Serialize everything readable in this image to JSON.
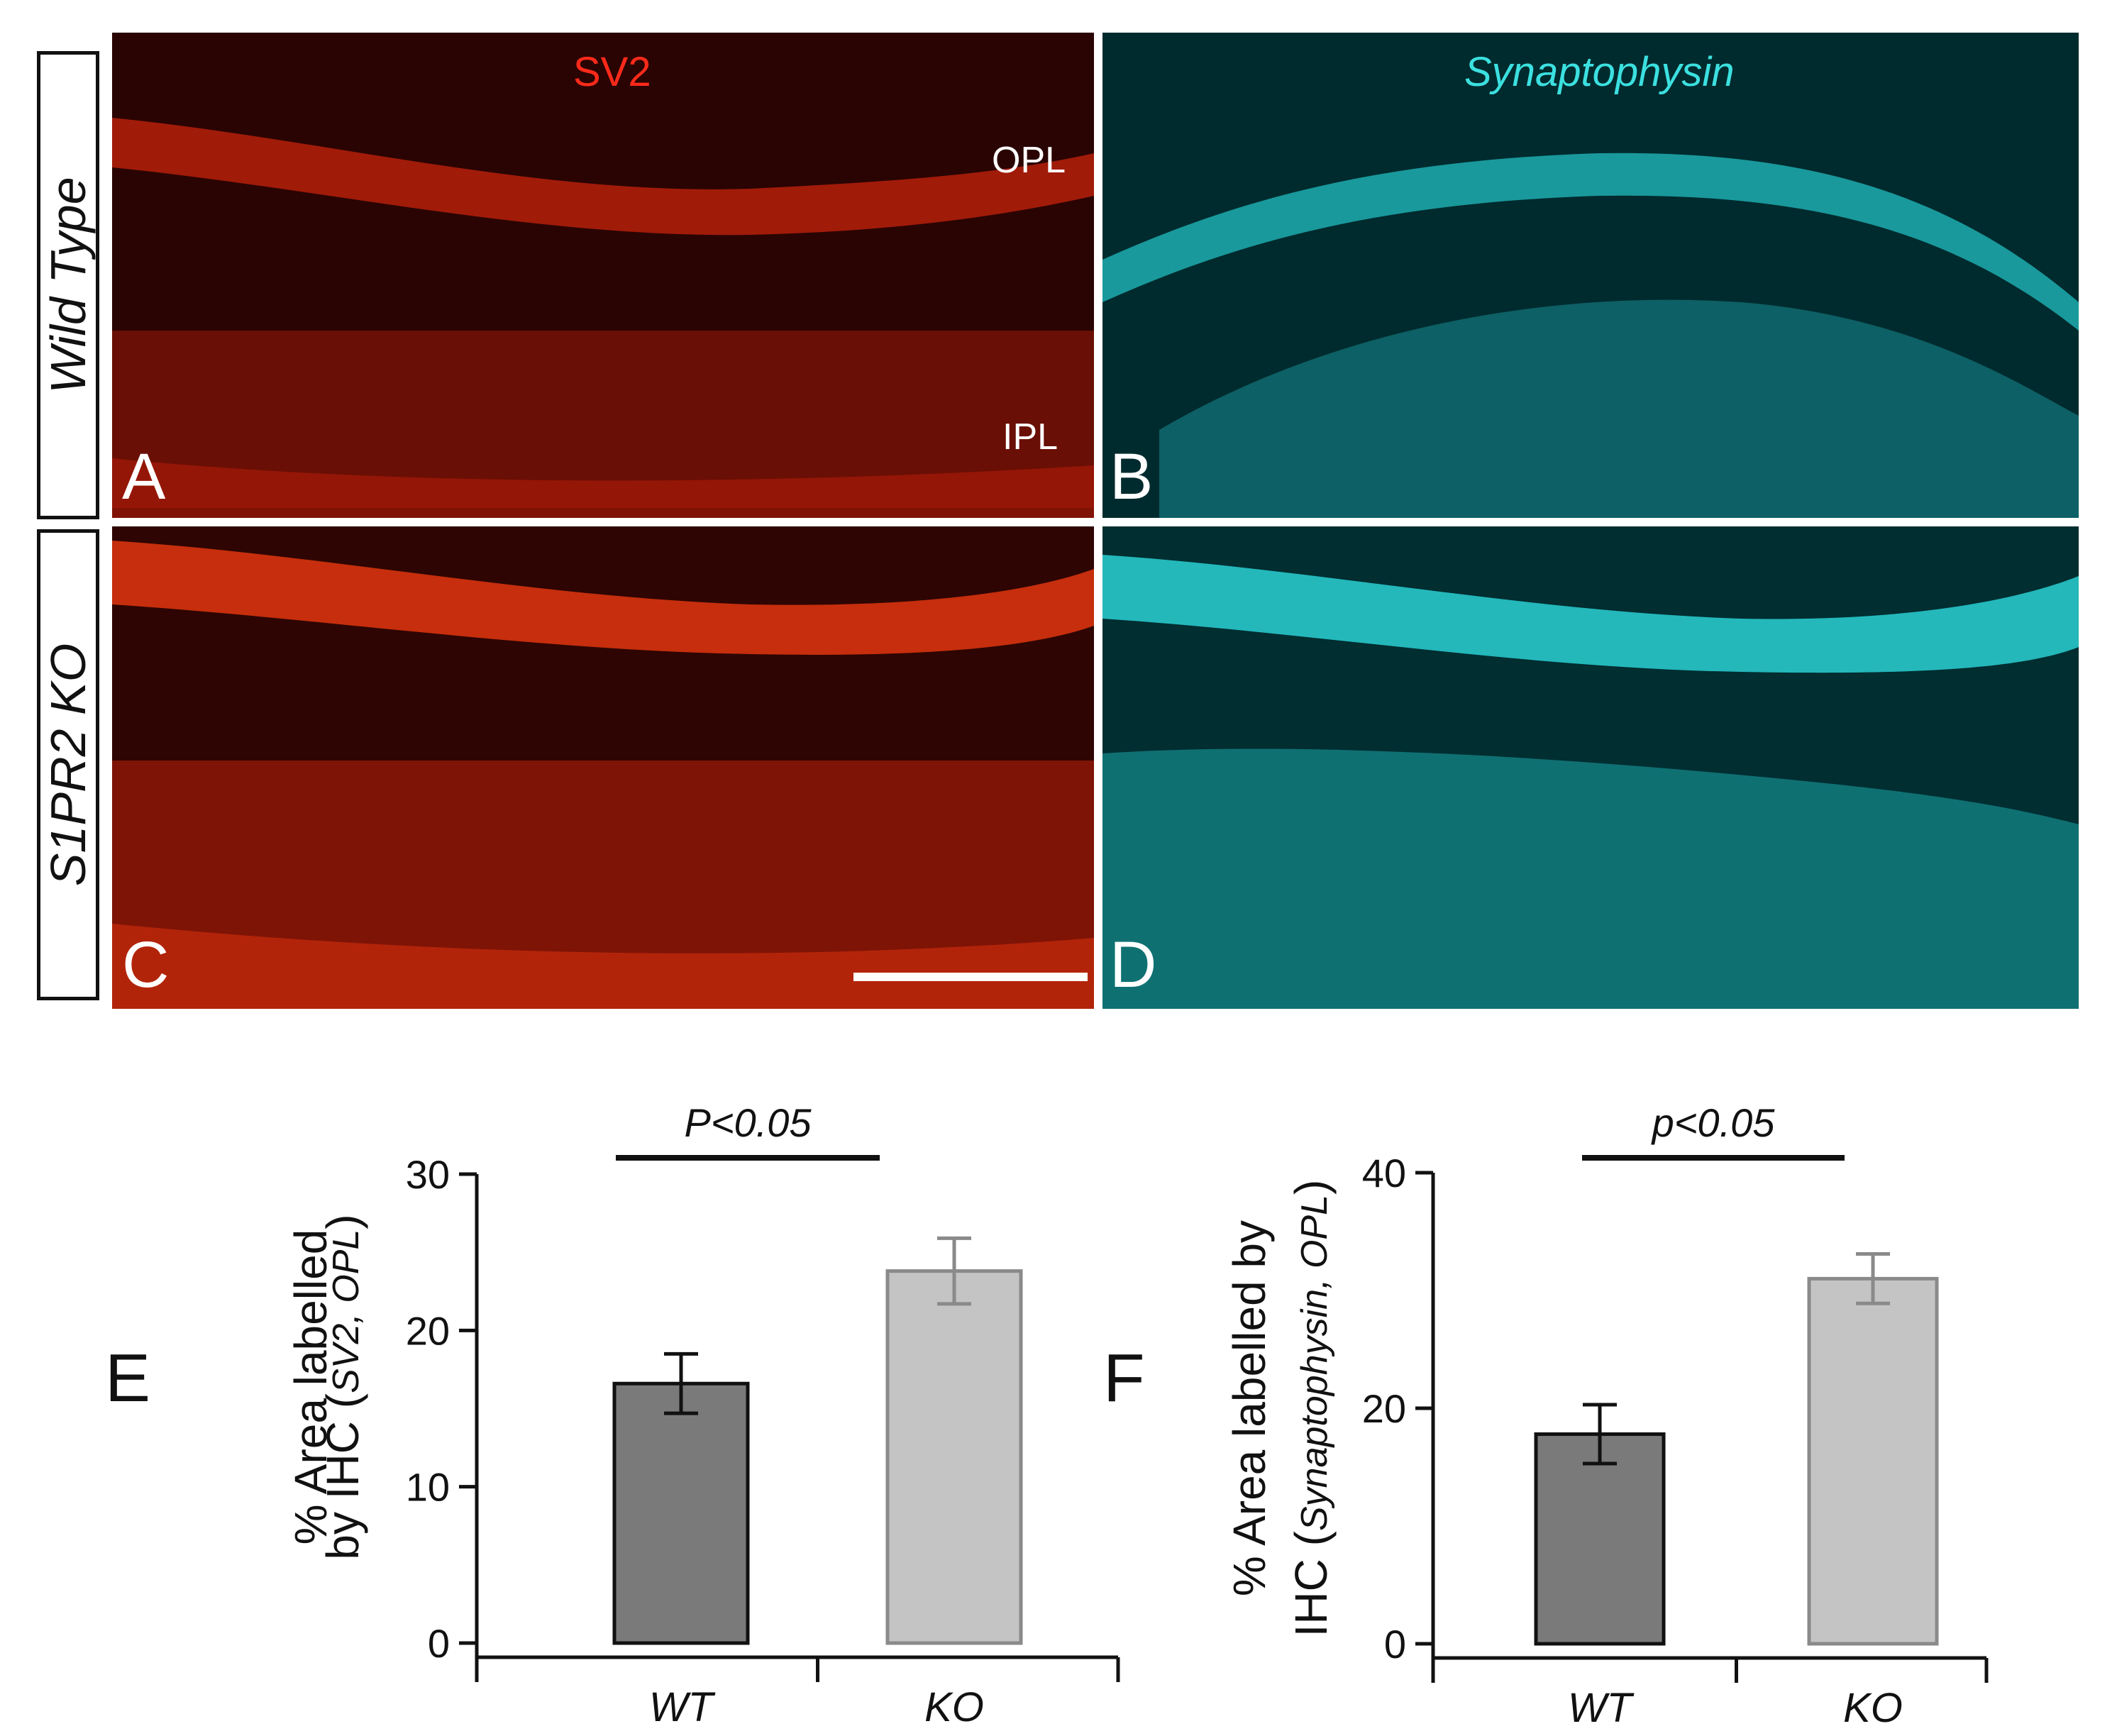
{
  "rows": [
    {
      "label": "Wild Type"
    },
    {
      "label": "S1PR2 KO"
    }
  ],
  "stains": {
    "left": "SV2",
    "right": "Synaptophysin"
  },
  "layers": {
    "outer": "OPL",
    "inner": "IPL"
  },
  "panel_letters": [
    "A",
    "B",
    "C",
    "D",
    "E",
    "F"
  ],
  "colors": {
    "sv2": "#ff3b1f",
    "synaptophysin": "#32e0e0",
    "wt_bar": "#7a7a7a",
    "ko_bar": "#c4c4c4"
  },
  "chart_data": [
    {
      "type": "bar",
      "panel": "E",
      "categories": [
        "WT",
        "KO"
      ],
      "values": [
        16.6,
        23.8
      ],
      "errors": [
        1.9,
        2.1
      ],
      "ylabel_main": "% Area labelled",
      "ylabel_sub": "by IHC",
      "ylabel_paren": [
        "SV2",
        "OPL"
      ],
      "ylim": [
        0,
        30
      ],
      "yticks": [
        0,
        10,
        20,
        30
      ],
      "significance": "P<0.05"
    },
    {
      "type": "bar",
      "panel": "F",
      "categories": [
        "WT",
        "KO"
      ],
      "values": [
        17.8,
        31.0
      ],
      "errors": [
        2.5,
        2.1
      ],
      "ylabel_main": "% Area labelled by",
      "ylabel_sub": "IHC",
      "ylabel_paren": [
        "Synaptophysin",
        "OPL"
      ],
      "ylim": [
        0,
        40
      ],
      "yticks": [
        0,
        20,
        40
      ],
      "significance": "p<0.05"
    }
  ]
}
